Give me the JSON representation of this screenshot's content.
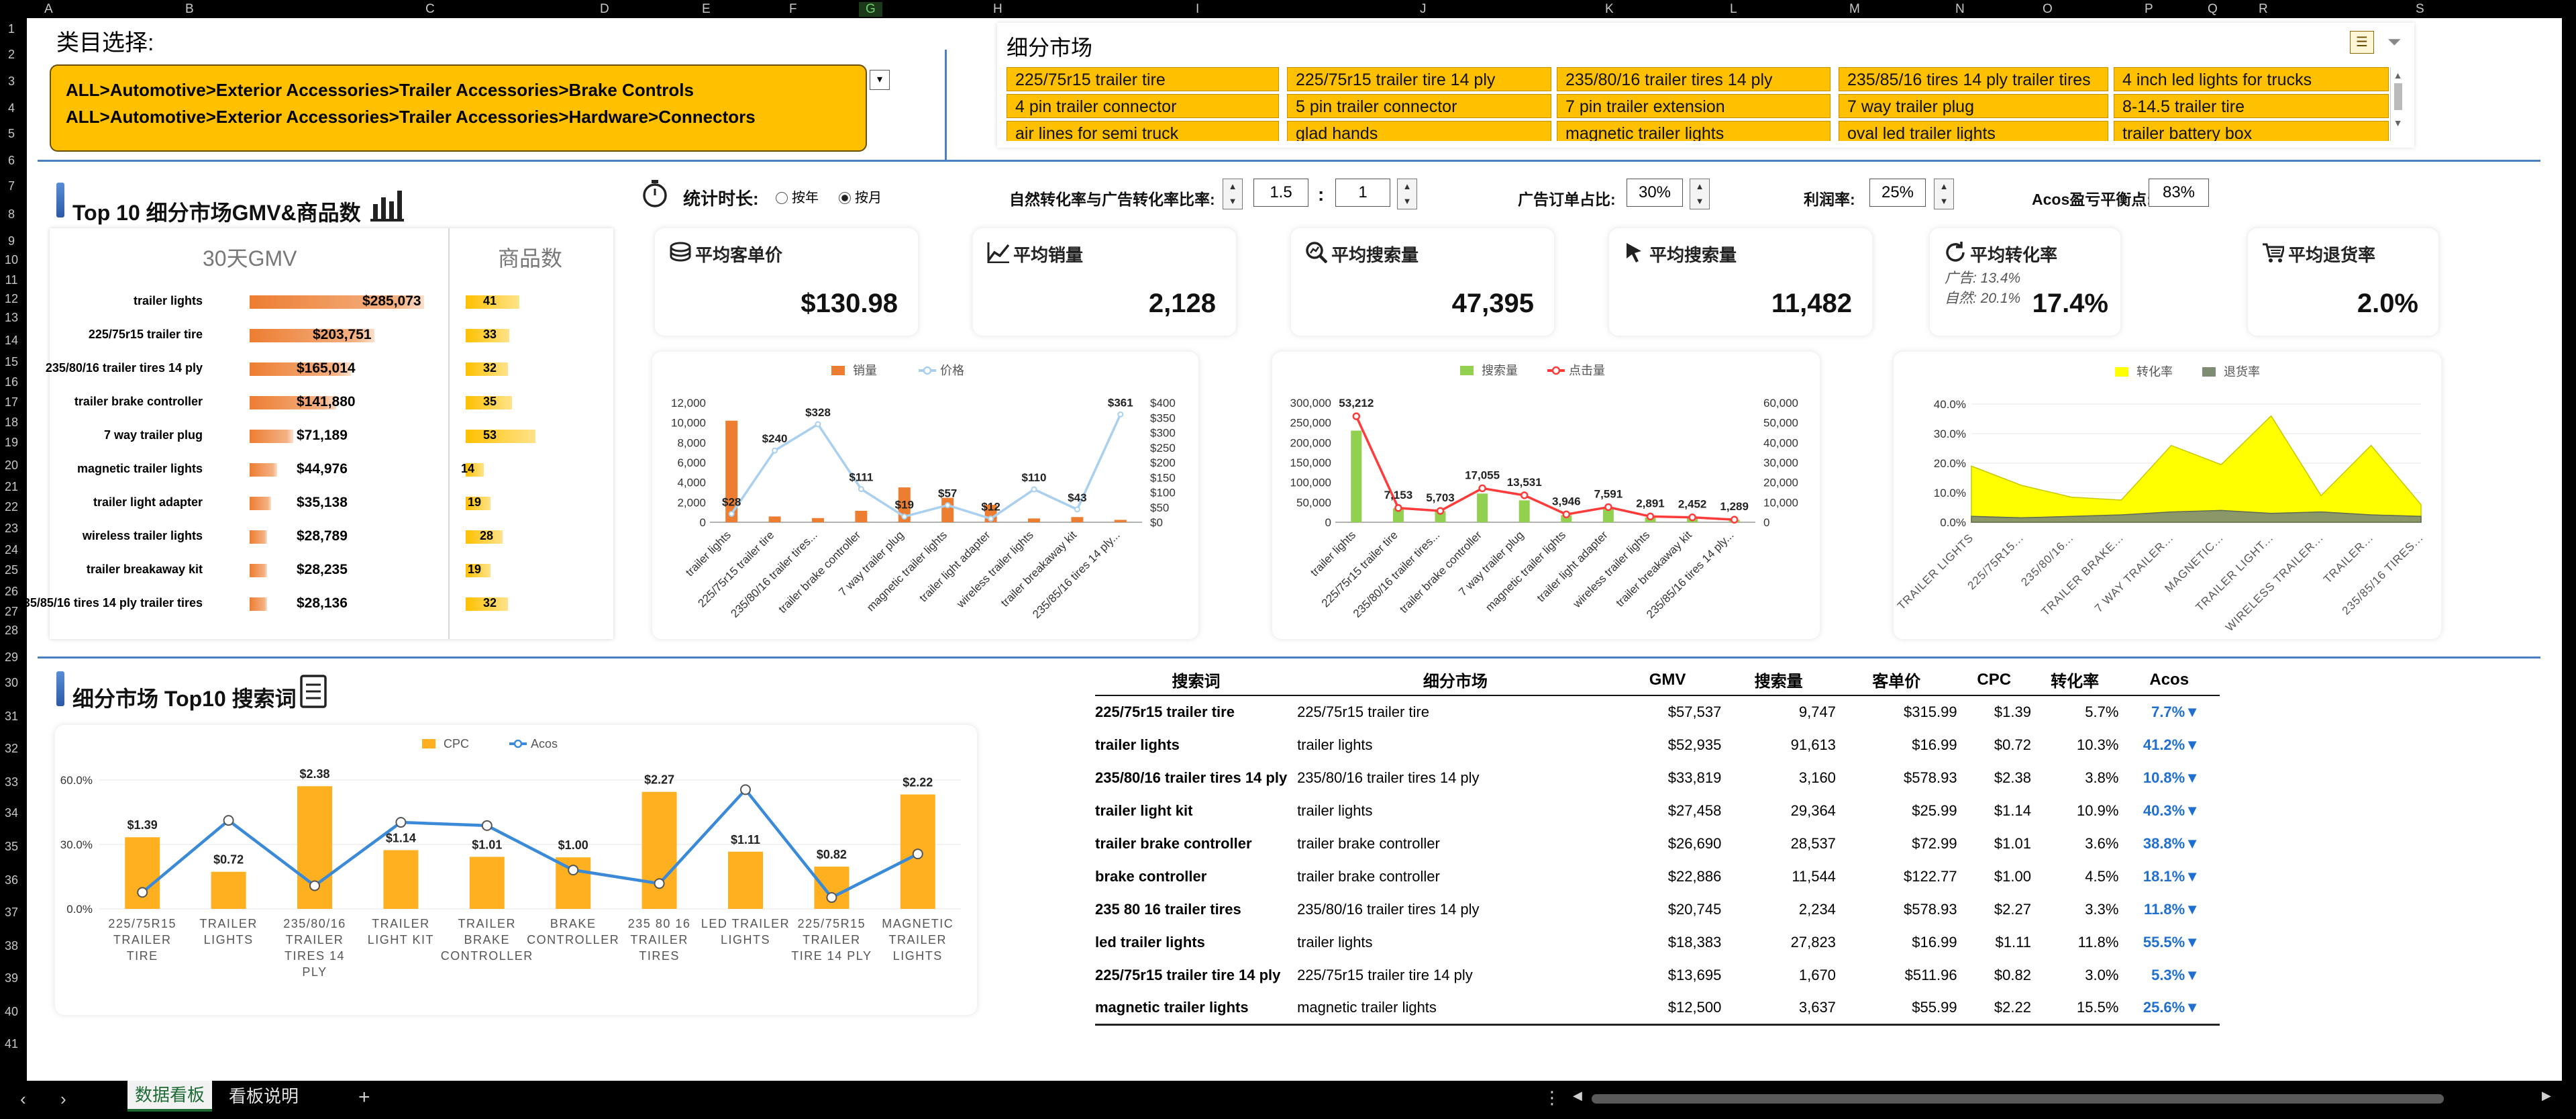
{
  "grid": {
    "columns": [
      "A",
      "B",
      "C",
      "D",
      "E",
      "F",
      "G",
      "H",
      "I",
      "J",
      "K",
      "L",
      "M",
      "N",
      "O",
      "P",
      "Q",
      "R",
      "S"
    ],
    "rows": [
      "1",
      "2",
      "3",
      "4",
      "5",
      "6",
      "7",
      "8",
      "9",
      "10",
      "11",
      "12",
      "13",
      "14",
      "15",
      "16",
      "17",
      "18",
      "19",
      "20",
      "21",
      "22",
      "23",
      "24",
      "25",
      "26",
      "27",
      "28",
      "29",
      "30",
      "31",
      "32",
      "33",
      "34",
      "35",
      "36",
      "37",
      "38",
      "39",
      "40",
      "41"
    ]
  },
  "category": {
    "label": "类目选择:",
    "paths": [
      "ALL>Automotive>Exterior Accessories>Trailer Accessories>Brake Controls",
      "ALL>Automotive>Exterior Accessories>Trailer Accessories>Hardware>Connectors"
    ]
  },
  "market": {
    "label": "细分市场",
    "tags": [
      "225/75r15 trailer tire",
      "225/75r15 trailer tire 14 ply",
      "235/80/16 trailer tires 14 ply",
      "235/85/16 tires 14 ply trailer tires",
      "4 inch led lights for trucks",
      "4 pin trailer connector",
      "5 pin trailer connector",
      "7 pin trailer extension",
      "7 way trailer plug",
      "8-14.5 trailer tire",
      "air lines for semi truck",
      "glad hands",
      "magnetic trailer lights",
      "oval led trailer lights",
      "trailer battery box"
    ],
    "icons": [
      "multi-select-icon",
      "filter-icon"
    ]
  },
  "controls": {
    "duration_label": "统计时长:",
    "by_year": "按年",
    "by_month": "按月",
    "selected": "按月",
    "ratio_label": "自然转化率与广告转化率比率:",
    "ratio_a": "1.5",
    "ratio_sep": ":",
    "ratio_b": "1",
    "ad_share_label": "广告订单占比:",
    "ad_share": "30%",
    "margin_label": "利润率:",
    "margin": "25%",
    "acos_label": "Acos盈亏平衡点:",
    "acos_value": "83%"
  },
  "top10": {
    "title": "Top 10 细分市场GMV&商品数",
    "gmv_header": "30天GMV",
    "count_header": "商品数",
    "rows": [
      {
        "name": "trailer lights",
        "gmv": 285073,
        "gmv_label": "$285,073",
        "count": 41
      },
      {
        "name": "225/75r15 trailer tire",
        "gmv": 203751,
        "gmv_label": "$203,751",
        "count": 33
      },
      {
        "name": "235/80/16 trailer tires 14 ply",
        "gmv": 165014,
        "gmv_label": "$165,014",
        "count": 32
      },
      {
        "name": "trailer brake controller",
        "gmv": 141880,
        "gmv_label": "$141,880",
        "count": 35
      },
      {
        "name": "7 way trailer plug",
        "gmv": 71189,
        "gmv_label": "$71,189",
        "count": 53
      },
      {
        "name": "magnetic trailer lights",
        "gmv": 44976,
        "gmv_label": "$44,976",
        "count": 14
      },
      {
        "name": "trailer light adapter",
        "gmv": 35138,
        "gmv_label": "$35,138",
        "count": 19
      },
      {
        "name": "wireless trailer lights",
        "gmv": 28789,
        "gmv_label": "$28,789",
        "count": 28
      },
      {
        "name": "trailer breakaway kit",
        "gmv": 28235,
        "gmv_label": "$28,235",
        "count": 19
      },
      {
        "name": "235/85/16 tires 14 ply trailer tires",
        "gmv": 28136,
        "gmv_label": "$28,136",
        "count": 32
      }
    ]
  },
  "kpis": [
    {
      "title": "平均客单价",
      "value": "$130.98",
      "icon": "coins-icon"
    },
    {
      "title": "平均销量",
      "value": "2,128",
      "icon": "trend-line-icon"
    },
    {
      "title": "平均搜索量",
      "value": "47,395",
      "icon": "search-chart-icon"
    },
    {
      "title": "平均搜索量",
      "value": "11,482",
      "icon": "cursor-icon"
    },
    {
      "title": "平均转化率",
      "value": "17.4%",
      "icon": "refresh-icon",
      "ad_label": "广告:",
      "ad_value": "13.4%",
      "natural_label": "自然:",
      "natural_value": "20.1%"
    },
    {
      "title": "平均退货率",
      "value": "2.0%",
      "icon": "cart-icon"
    }
  ],
  "chart_data": [
    {
      "type": "bar",
      "id": "sales-price",
      "categories": [
        "trailer lights",
        "225/75r15 trailer tire",
        "235/80/16 trailer tires...",
        "trailer brake controller",
        "7 way trailer plug",
        "magnetic trailer lights",
        "trailer light adapter",
        "wireless trailer lights",
        "trailer breakaway kit",
        "235/85/16 tires 14 ply..."
      ],
      "series": [
        {
          "name": "销量",
          "kind": "bar",
          "axis": "left",
          "color": "#ed7d31",
          "values": [
            10200,
            580,
            420,
            1150,
            3500,
            2450,
            1750,
            380,
            520,
            240
          ]
        },
        {
          "name": "价格",
          "kind": "line",
          "axis": "right",
          "color": "#a9d0ee",
          "values": [
            28,
            240,
            328,
            111,
            19,
            57,
            12,
            110,
            43,
            361
          ]
        }
      ],
      "price_labels": [
        "$28",
        "$240",
        "$328",
        "$111",
        "$19",
        "$57",
        "$12",
        "$110",
        "$43",
        "$361"
      ],
      "ylim_left": [
        0,
        12000
      ],
      "yticks_left": [
        "0",
        "2,000",
        "4,000",
        "6,000",
        "8,000",
        "10,000",
        "12,000"
      ],
      "ylim_right": [
        0,
        400
      ],
      "yticks_right": [
        "$0",
        "$50",
        "$100",
        "$150",
        "$200",
        "$250",
        "$300",
        "$350",
        "$400"
      ]
    },
    {
      "type": "bar",
      "id": "search-click",
      "categories": [
        "trailer lights",
        "225/75r15 trailer tire",
        "235/80/16 trailer tires...",
        "trailer brake controller",
        "7 way trailer plug",
        "magnetic trailer lights",
        "trailer light adapter",
        "wireless trailer lights",
        "trailer breakaway kit",
        "235/85/16 tires 14 ply..."
      ],
      "series": [
        {
          "name": "搜索量",
          "kind": "bar",
          "axis": "left",
          "color": "#92d050",
          "values": [
            230000,
            35000,
            28000,
            72000,
            55000,
            18000,
            35000,
            12000,
            10000,
            6000
          ]
        },
        {
          "name": "点击量",
          "kind": "line",
          "axis": "right",
          "color": "#ff3b3b",
          "values": [
            53212,
            7153,
            5703,
            17055,
            13531,
            3946,
            7591,
            2891,
            2452,
            1289
          ]
        }
      ],
      "click_labels": [
        "53,212",
        "7,153",
        "5,703",
        "17,055",
        "13,531",
        "3,946",
        "7,591",
        "2,891",
        "2,452",
        "1,289"
      ],
      "ylim_left": [
        0,
        300000
      ],
      "yticks_left": [
        "0",
        "50,000",
        "100,000",
        "150,000",
        "200,000",
        "250,000",
        "300,000"
      ],
      "ylim_right": [
        0,
        60000
      ],
      "yticks_right": [
        "0",
        "10,000",
        "20,000",
        "30,000",
        "40,000",
        "50,000",
        "60,000"
      ]
    },
    {
      "type": "area",
      "id": "conversion-return",
      "categories": [
        "TRAILER LIGHTS",
        "225/75R15...",
        "235/80/16...",
        "TRAILER BRAKE...",
        "7 WAY TRAILER...",
        "MAGNETIC...",
        "TRAILER LIGHT...",
        "WIRELESS TRAILER...",
        "TRAILER...",
        "235/85/16 TIRES..."
      ],
      "series": [
        {
          "name": "转化率",
          "color": "#ffff00",
          "values": [
            0.19,
            0.125,
            0.085,
            0.075,
            0.26,
            0.195,
            0.36,
            0.09,
            0.26,
            0.06
          ]
        },
        {
          "name": "退货率",
          "color": "#7f8c74",
          "values": [
            0.02,
            0.015,
            0.02,
            0.025,
            0.035,
            0.04,
            0.03,
            0.035,
            0.025,
            0.02
          ]
        }
      ],
      "ylim": [
        0,
        0.4
      ],
      "yticks": [
        "0.0%",
        "10.0%",
        "20.0%",
        "30.0%",
        "40.0%"
      ]
    },
    {
      "type": "bar",
      "id": "cpc-acos",
      "categories": [
        "225/75R15 TRAILER TIRE",
        "TRAILER LIGHTS",
        "235/80/16 TRAILER TIRES 14 PLY",
        "TRAILER LIGHT KIT",
        "TRAILER BRAKE CONTROLLER",
        "BRAKE CONTROLLER",
        "235 80 16 TRAILER TIRES",
        "LED TRAILER LIGHTS",
        "225/75R15 TRAILER TIRE 14 PLY",
        "MAGNETIC TRAILER LIGHTS"
      ],
      "series": [
        {
          "name": "CPC",
          "kind": "bar",
          "color": "#ffb020",
          "values": [
            1.39,
            0.72,
            2.38,
            1.14,
            1.01,
            1.0,
            2.27,
            1.11,
            0.82,
            2.22
          ]
        },
        {
          "name": "Acos",
          "kind": "line",
          "color": "#3a8ad8",
          "values": [
            0.077,
            0.412,
            0.108,
            0.403,
            0.388,
            0.181,
            0.118,
            0.555,
            0.053,
            0.256
          ]
        }
      ],
      "cpc_labels": [
        "$1.39",
        "$0.72",
        "$2.38",
        "$1.14",
        "$1.01",
        "$1.00",
        "$2.27",
        "$1.11",
        "$0.82",
        "$2.22"
      ],
      "ylim": [
        0,
        0.6
      ],
      "yticks": [
        "0.0%",
        "30.0%",
        "60.0%"
      ]
    }
  ],
  "keywords": {
    "title": "细分市场 Top10 搜索词",
    "headers": [
      "搜索词",
      "细分市场",
      "GMV",
      "搜索量",
      "客单价",
      "CPC",
      "转化率",
      "Acos"
    ],
    "rows": [
      [
        "225/75r15 trailer tire",
        "225/75r15 trailer tire",
        "$57,537",
        "9,747",
        "$315.99",
        "$1.39",
        "5.7%",
        "7.7%"
      ],
      [
        "trailer lights",
        "trailer lights",
        "$52,935",
        "91,613",
        "$16.99",
        "$0.72",
        "10.3%",
        "41.2%"
      ],
      [
        "235/80/16 trailer tires 14 ply",
        "235/80/16 trailer tires 14 ply",
        "$33,819",
        "3,160",
        "$578.93",
        "$2.38",
        "3.8%",
        "10.8%"
      ],
      [
        "trailer light kit",
        "trailer lights",
        "$27,458",
        "29,364",
        "$25.99",
        "$1.14",
        "10.9%",
        "40.3%"
      ],
      [
        "trailer brake controller",
        "trailer brake controller",
        "$26,690",
        "28,537",
        "$72.99",
        "$1.01",
        "3.6%",
        "38.8%"
      ],
      [
        "brake controller",
        "trailer brake controller",
        "$22,886",
        "11,544",
        "$122.77",
        "$1.00",
        "4.5%",
        "18.1%"
      ],
      [
        "235 80 16 trailer tires",
        "235/80/16 trailer tires 14 ply",
        "$20,745",
        "2,234",
        "$578.93",
        "$2.27",
        "3.3%",
        "11.8%"
      ],
      [
        "led trailer lights",
        "trailer lights",
        "$18,383",
        "27,823",
        "$16.99",
        "$1.11",
        "11.8%",
        "55.5%"
      ],
      [
        "225/75r15 trailer tire 14 ply",
        "225/75r15 trailer tire 14 ply",
        "$13,695",
        "1,670",
        "$511.96",
        "$0.82",
        "3.0%",
        "5.3%"
      ],
      [
        "magnetic trailer lights",
        "magnetic trailer lights",
        "$12,500",
        "3,637",
        "$55.99",
        "$2.22",
        "15.5%",
        "25.6%"
      ]
    ],
    "acos_marker": "▼"
  },
  "sheets": {
    "tabs": [
      "数据看板",
      "看板说明"
    ],
    "active": "数据看板",
    "add": "+",
    "menu": "⋮"
  },
  "colors": {
    "accent_orange": "#ed7d31",
    "tag_yellow": "#ffc000",
    "blue_line": "#4a7fc1"
  }
}
